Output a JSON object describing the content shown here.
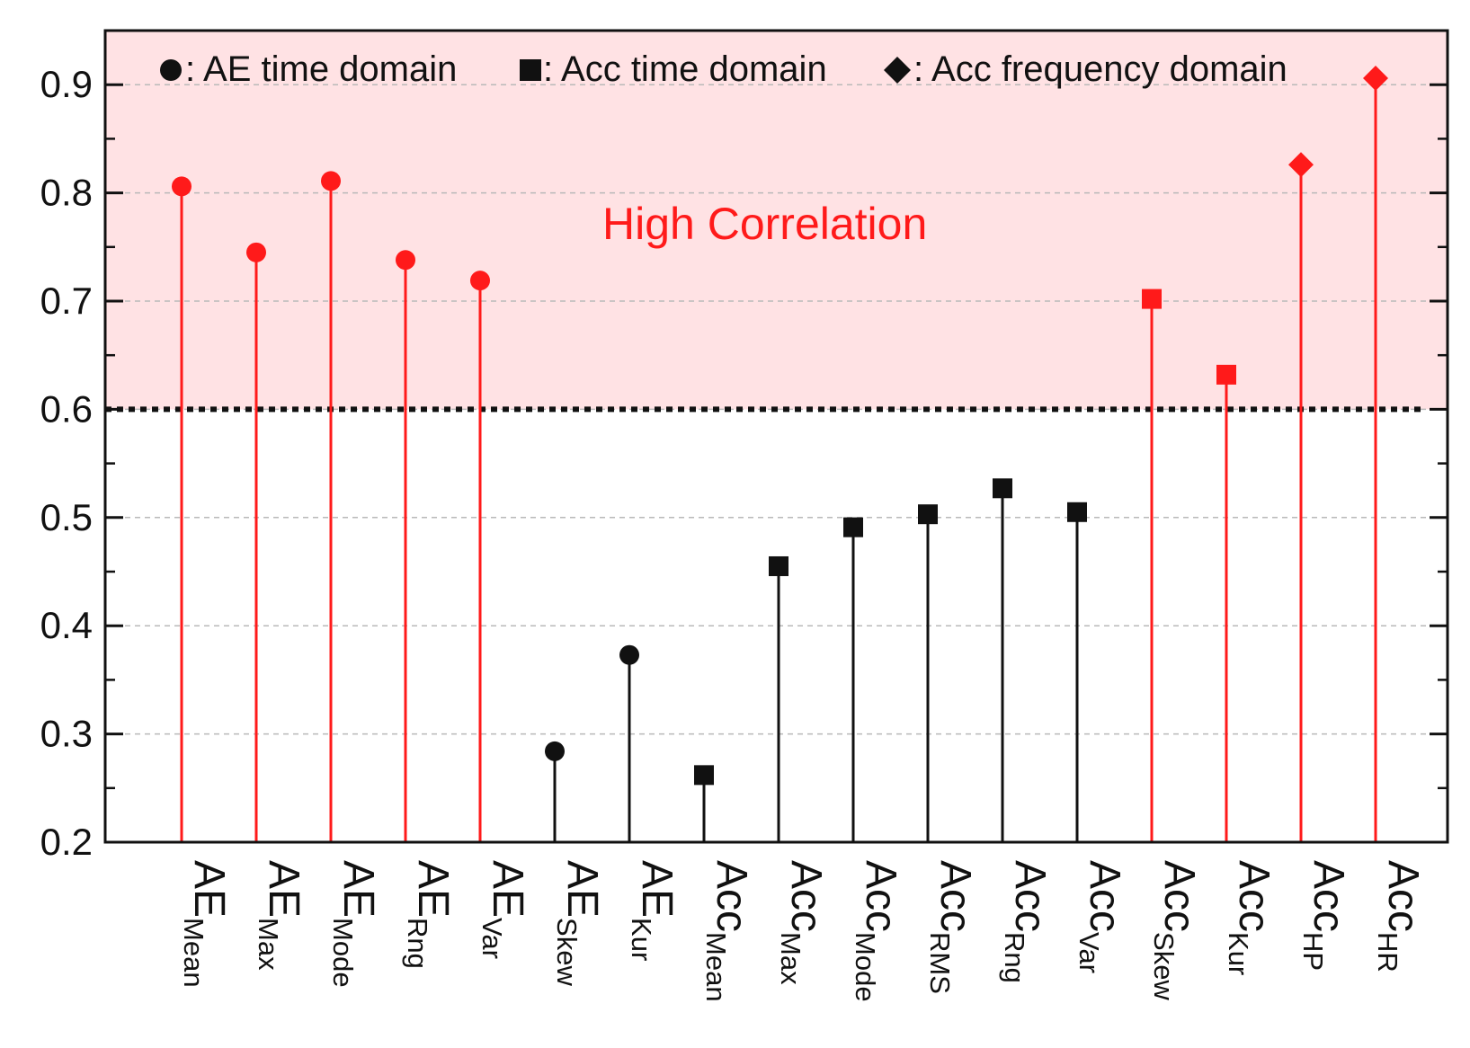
{
  "chart_data": {
    "type": "scatter",
    "ylim": [
      0.2,
      0.95
    ],
    "yticks": [
      "0.2",
      "0.3",
      "0.4",
      "0.5",
      "0.6",
      "0.7",
      "0.8",
      "0.9"
    ],
    "threshold": 0.6,
    "high_region": [
      0.6,
      0.95
    ],
    "grid": true,
    "legend_position": "top",
    "legend": [
      {
        "marker": "circle",
        "label": ": AE time domain"
      },
      {
        "marker": "square",
        "label": ": Acc time domain"
      },
      {
        "marker": "diamond",
        "label": ": Acc frequency domain"
      }
    ],
    "annotation": "High Correlation",
    "colors": {
      "high": "#ff1a1a",
      "low": "#111111",
      "region": "#ffe2e4"
    },
    "points": [
      {
        "main": "AE",
        "sub": "Mean",
        "value": 0.806,
        "marker": "circle"
      },
      {
        "main": "AE",
        "sub": "Max",
        "value": 0.745,
        "marker": "circle"
      },
      {
        "main": "AE",
        "sub": "Mode",
        "value": 0.811,
        "marker": "circle"
      },
      {
        "main": "AE",
        "sub": "Rng",
        "value": 0.738,
        "marker": "circle"
      },
      {
        "main": "AE",
        "sub": "Var",
        "value": 0.719,
        "marker": "circle"
      },
      {
        "main": "AE",
        "sub": "Skew",
        "value": 0.284,
        "marker": "circle"
      },
      {
        "main": "AE",
        "sub": "Kur",
        "value": 0.373,
        "marker": "circle"
      },
      {
        "main": "Acc",
        "sub": "Mean",
        "value": 0.262,
        "marker": "square"
      },
      {
        "main": "Acc",
        "sub": "Max",
        "value": 0.455,
        "marker": "square"
      },
      {
        "main": "Acc",
        "sub": "Mode",
        "value": 0.491,
        "marker": "square"
      },
      {
        "main": "Acc",
        "sub": "RMS",
        "value": 0.503,
        "marker": "square"
      },
      {
        "main": "Acc",
        "sub": "Rng",
        "value": 0.527,
        "marker": "square"
      },
      {
        "main": "Acc",
        "sub": "Var",
        "value": 0.505,
        "marker": "square"
      },
      {
        "main": "Acc",
        "sub": "Skew",
        "value": 0.702,
        "marker": "square"
      },
      {
        "main": "Acc",
        "sub": "Kur",
        "value": 0.632,
        "marker": "square"
      },
      {
        "main": "Acc",
        "sub": "HP",
        "value": 0.826,
        "marker": "diamond"
      },
      {
        "main": "Acc",
        "sub": "HR",
        "value": 0.906,
        "marker": "diamond"
      }
    ]
  }
}
